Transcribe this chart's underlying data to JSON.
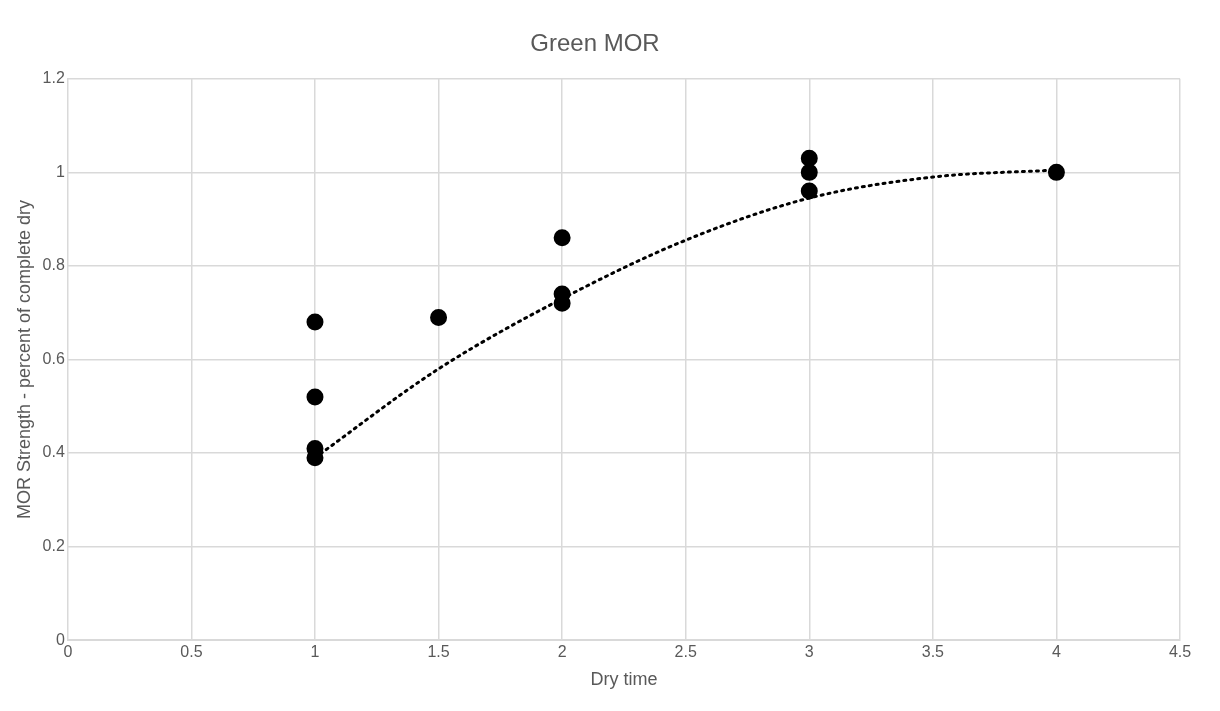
{
  "chart_data": {
    "type": "scatter",
    "title": "Green MOR",
    "xlabel": "Dry time",
    "ylabel": "MOR Strength - percent of complete dry",
    "xlim": [
      0,
      4.5
    ],
    "xticks": [
      0,
      0.5,
      1,
      1.5,
      2,
      2.5,
      3,
      3.5,
      4,
      4.5
    ],
    "ylim": [
      0,
      1.2
    ],
    "yticks": [
      0,
      0.2,
      0.4,
      0.6,
      0.8,
      1,
      1.2
    ],
    "grid": true,
    "legend": false,
    "marker": "circle",
    "series": [
      {
        "color": "#000000",
        "x": [
          1,
          1,
          1,
          1,
          1.5,
          2,
          2,
          2,
          3,
          3,
          3,
          4
        ],
        "values": [
          0.68,
          0.52,
          0.41,
          0.39,
          0.69,
          0.86,
          0.74,
          0.72,
          1.03,
          1.0,
          0.96,
          1.0
        ]
      },
      {
        "type": "line",
        "color": "#000000",
        "line_style": "dotted",
        "marker": "none",
        "x": [
          1,
          1.5,
          2,
          2.5,
          3,
          3.5,
          4
        ],
        "values": [
          0.39,
          0.58,
          0.73,
          0.855,
          0.945,
          0.99,
          1.005
        ]
      }
    ]
  }
}
